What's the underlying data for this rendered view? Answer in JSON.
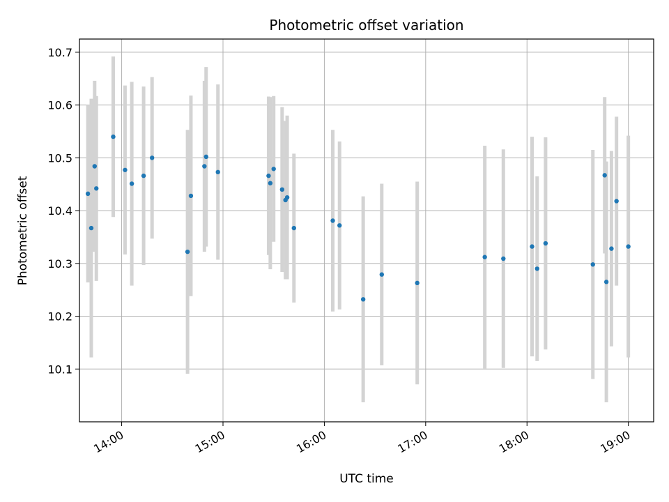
{
  "chart_data": {
    "type": "scatter",
    "title": "Photometric offset variation",
    "xlabel": "UTC time",
    "ylabel": "Photometric offset",
    "x_is_time": true,
    "xlim": [
      "13:35",
      "19:15"
    ],
    "ylim": [
      10.0,
      10.725
    ],
    "x_ticks": [
      "14:00",
      "15:00",
      "16:00",
      "17:00",
      "18:00",
      "19:00"
    ],
    "y_ticks": [
      10.1,
      10.2,
      10.3,
      10.4,
      10.5,
      10.6,
      10.7
    ],
    "grid": true,
    "colors": {
      "point": "#1f77b4",
      "errorbar": "#d3d3d3",
      "grid": "#b0b0b0"
    },
    "points": [
      {
        "x": "13:40",
        "y": 10.432,
        "err": 0.168
      },
      {
        "x": "13:42",
        "y": 10.367,
        "err": 0.245
      },
      {
        "x": "13:44",
        "y": 10.484,
        "err": 0.162
      },
      {
        "x": "13:45",
        "y": 10.442,
        "err": 0.175
      },
      {
        "x": "13:55",
        "y": 10.54,
        "err": 0.152
      },
      {
        "x": "14:02",
        "y": 10.477,
        "err": 0.16
      },
      {
        "x": "14:06",
        "y": 10.451,
        "err": 0.193
      },
      {
        "x": "14:13",
        "y": 10.466,
        "err": 0.169
      },
      {
        "x": "14:18",
        "y": 10.5,
        "err": 0.153
      },
      {
        "x": "14:39",
        "y": 10.322,
        "err": 0.231
      },
      {
        "x": "14:41",
        "y": 10.428,
        "err": 0.19
      },
      {
        "x": "14:49",
        "y": 10.484,
        "err": 0.162
      },
      {
        "x": "14:50",
        "y": 10.502,
        "err": 0.17
      },
      {
        "x": "14:57",
        "y": 10.473,
        "err": 0.166
      },
      {
        "x": "15:27",
        "y": 10.466,
        "err": 0.15
      },
      {
        "x": "15:28",
        "y": 10.452,
        "err": 0.163
      },
      {
        "x": "15:30",
        "y": 10.479,
        "err": 0.138
      },
      {
        "x": "15:35",
        "y": 10.44,
        "err": 0.156
      },
      {
        "x": "15:37",
        "y": 10.42,
        "err": 0.15
      },
      {
        "x": "15:38",
        "y": 10.425,
        "err": 0.155
      },
      {
        "x": "15:42",
        "y": 10.367,
        "err": 0.141
      },
      {
        "x": "16:05",
        "y": 10.381,
        "err": 0.172
      },
      {
        "x": "16:09",
        "y": 10.372,
        "err": 0.159
      },
      {
        "x": "16:23",
        "y": 10.232,
        "err": 0.195
      },
      {
        "x": "16:34",
        "y": 10.279,
        "err": 0.172
      },
      {
        "x": "16:55",
        "y": 10.263,
        "err": 0.192
      },
      {
        "x": "17:35",
        "y": 10.312,
        "err": 0.211
      },
      {
        "x": "17:46",
        "y": 10.309,
        "err": 0.207
      },
      {
        "x": "18:03",
        "y": 10.332,
        "err": 0.208
      },
      {
        "x": "18:06",
        "y": 10.29,
        "err": 0.175
      },
      {
        "x": "18:11",
        "y": 10.338,
        "err": 0.201
      },
      {
        "x": "18:39",
        "y": 10.298,
        "err": 0.217
      },
      {
        "x": "18:46",
        "y": 10.467,
        "err": 0.148
      },
      {
        "x": "18:47",
        "y": 10.265,
        "err": 0.228
      },
      {
        "x": "18:50",
        "y": 10.328,
        "err": 0.185
      },
      {
        "x": "18:53",
        "y": 10.418,
        "err": 0.16
      },
      {
        "x": "19:00",
        "y": 10.332,
        "err": 0.21
      }
    ]
  }
}
